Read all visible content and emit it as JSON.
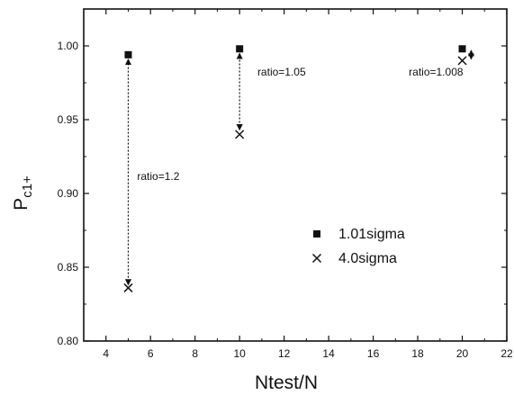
{
  "chart_data": {
    "type": "scatter",
    "x": [
      5,
      10,
      20
    ],
    "series": [
      {
        "name": "1.01sigma",
        "marker": "square",
        "values": [
          0.994,
          0.998,
          0.998
        ]
      },
      {
        "name": "4.0sigma",
        "marker": "cross",
        "values": [
          0.836,
          0.94,
          0.99
        ]
      }
    ],
    "xlabel": "Ntest/N",
    "ylabel": "P",
    "ylabel_sub": "c1+",
    "xlim": [
      3,
      22
    ],
    "ylim": [
      0.8,
      1.025
    ],
    "xticks": [
      4,
      6,
      8,
      10,
      12,
      14,
      16,
      18,
      20,
      22
    ],
    "xtick_labels": [
      "4",
      "6",
      "8",
      "10",
      "12",
      "14",
      "16",
      "18",
      "20",
      "22"
    ],
    "yticks": [
      0.8,
      0.85,
      0.9,
      0.95,
      1.0
    ],
    "ytick_labels": [
      "0.80",
      "0.85",
      "0.90",
      "0.95",
      "1.00"
    ],
    "annotations": [
      {
        "text": "ratio=1.2",
        "x": 5.4,
        "y": 0.909
      },
      {
        "text": "ratio=1.05",
        "x": 10.8,
        "y": 0.98
      },
      {
        "text": "ratio=1.008",
        "x": 17.6,
        "y": 0.98
      }
    ],
    "arrows": [
      {
        "x": 5,
        "y_from": 0.838,
        "y_to": 0.991
      },
      {
        "x": 10,
        "y_from": 0.943,
        "y_to": 0.995
      },
      {
        "x": 20.4,
        "y_from": 0.991,
        "y_to": 0.997
      }
    ],
    "legend_position": "lower-right",
    "grid": false,
    "colors": {
      "marks": "#111111",
      "background": "#ffffff"
    }
  }
}
